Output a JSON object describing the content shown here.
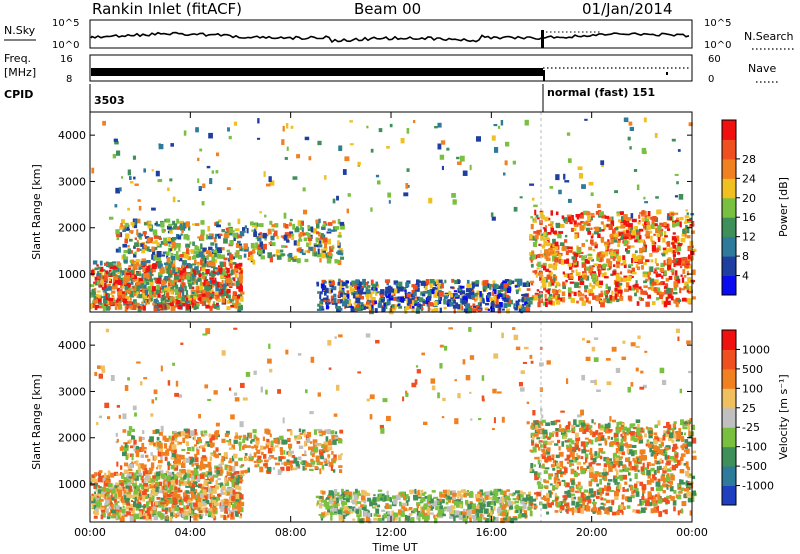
{
  "header": {
    "station": "Rankin Inlet (fitACF)",
    "beam": "Beam 00",
    "date": "01/Jan/2014"
  },
  "strip": {
    "nsky_label": "N.Sky",
    "nsky_ticks": [
      "10^5",
      "10^0"
    ],
    "nsearch_label": "N.Search",
    "nsearch_ticks": [
      "10^5",
      "10^0"
    ],
    "freq_label": "Freq.",
    "freq_unit": "[MHz]",
    "freq_ticks": [
      "16",
      "8"
    ],
    "nave_label": "Nave",
    "nave_ticks": [
      "60",
      "0"
    ],
    "cpid_label": "CPID",
    "cpid_segments": [
      {
        "label": "3503",
        "start_hour": 0,
        "end_hour": 18
      },
      {
        "label": "normal (fast) 151",
        "start_hour": 18,
        "end_hour": 24
      }
    ]
  },
  "chart_data": [
    {
      "type": "heatmap",
      "quantity": "power",
      "ylabel": "Slant Range [km]",
      "xlabel": "",
      "x_unit": "hour UT",
      "xlim": [
        0,
        24
      ],
      "ylim": [
        180,
        4500
      ],
      "x_ticks": [
        "00:00",
        "04:00",
        "08:00",
        "12:00",
        "16:00",
        "20:00",
        "00:00"
      ],
      "y_ticks": [
        "1000",
        "2000",
        "3000",
        "4000"
      ],
      "colorbar": {
        "label": "Power [dB]",
        "ticks": [
          "4",
          "8",
          "12",
          "16",
          "20",
          "24",
          "28"
        ],
        "colors": [
          "#0b0bf0",
          "#1e3fa0",
          "#2d7a9a",
          "#3f8f5a",
          "#7ac040",
          "#f0c020",
          "#f08020",
          "#f05020",
          "#f01010"
        ]
      }
    },
    {
      "type": "heatmap",
      "quantity": "velocity",
      "ylabel": "Slant Range [km]",
      "xlabel": "Time UT",
      "x_unit": "hour UT",
      "xlim": [
        0,
        24
      ],
      "ylim": [
        180,
        4500
      ],
      "x_ticks": [
        "00:00",
        "04:00",
        "08:00",
        "12:00",
        "16:00",
        "20:00",
        "00:00"
      ],
      "y_ticks": [
        "1000",
        "2000",
        "3000",
        "4000"
      ],
      "colorbar": {
        "label": "Velocity [m s⁻¹]",
        "ticks": [
          "1000",
          "500",
          "100",
          "25",
          "-25",
          "-100",
          "-500",
          "-1000"
        ],
        "colors": [
          "#1e3fc0",
          "#2d7a9a",
          "#3f8f5a",
          "#7ac040",
          "#c0c0c0",
          "#f0c060",
          "#f08020",
          "#f05020",
          "#f01010"
        ]
      }
    }
  ]
}
